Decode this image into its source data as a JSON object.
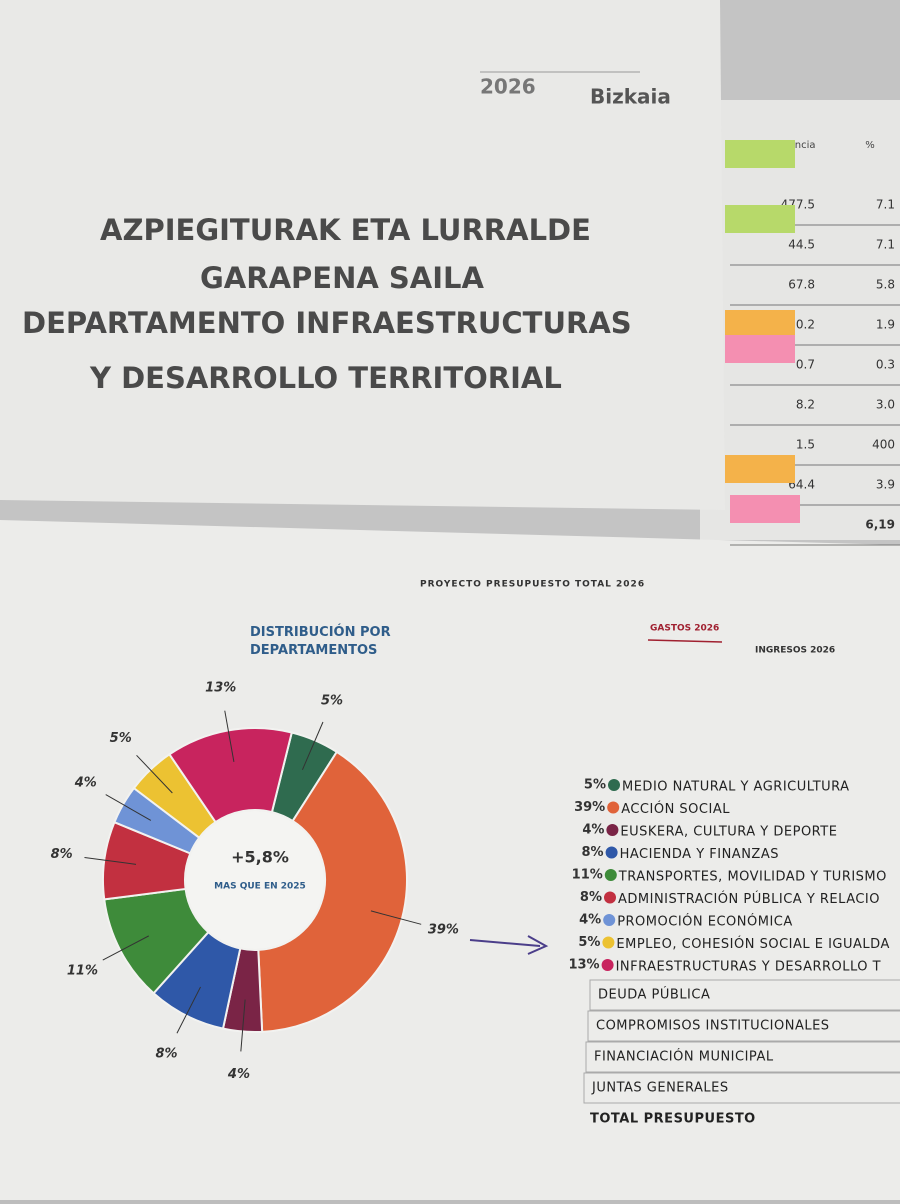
{
  "header": {
    "year": "2026",
    "brand": "Bizkaia",
    "title_lines": [
      "AZPIEGITURAK ETA LURRALDE",
      "GARAPENA SAILA",
      "DEPARTAMENTO  INFRAESTRUCTURAS",
      "Y DESARROLLO TERRITORIAL"
    ]
  },
  "table": {
    "columns": [
      "Diferencia",
      "%"
    ],
    "rows": [
      [
        "477.5",
        "7.1"
      ],
      [
        "44.5",
        "7.1"
      ],
      [
        "67.8",
        "5.8"
      ],
      [
        "0.2",
        "1.9"
      ],
      [
        "0.7",
        "0.3"
      ],
      [
        "8.2",
        "3.0"
      ],
      [
        "1.5",
        "400"
      ],
      [
        "64.4",
        "3.9"
      ],
      [
        "",
        "6,19"
      ]
    ]
  },
  "tabs": [
    "PROYECTO PRESUPUESTO TOTAL 2026",
    "GASTOS 2026",
    "INGRESOS 2026"
  ],
  "chart_data": {
    "type": "donut",
    "title": "DISTRIBUCIÓN POR DEPARTAMENTOS",
    "center_value": "+5,8%",
    "center_label": "MAS QUE EN 2025",
    "categories": [
      "MEDIO NATURAL Y AGRICULTURA",
      "ACCIÓN SOCIAL",
      "EUSKERA, CULTURA Y DEPORTE",
      "HACIENDA Y FINANZAS",
      "TRANSPORTES, MOVILIDAD Y TURISMO",
      "ADMINISTRACIÓN PÚBLICA Y RELACIO",
      "PROMOCIÓN ECONÓMICA",
      "EMPLEO, COHESIÓN SOCIAL E IGUALDA",
      "INFRAESTRUCTURAS Y DESARROLLO T"
    ],
    "values": [
      5,
      39,
      4,
      8,
      11,
      8,
      4,
      5,
      13
    ],
    "value_labels": [
      "5%",
      "39%",
      "4%",
      "8%",
      "11%",
      "8%",
      "4%",
      "5%",
      "13%"
    ],
    "colors": [
      "#2f6b4f",
      "#e0633a",
      "#7a2446",
      "#2f58a8",
      "#3e8b3a",
      "#c23040",
      "#6f93d6",
      "#ecc232",
      "#c8245e"
    ]
  },
  "other_items": [
    "DEUDA PÚBLICA",
    "COMPROMISOS INSTITUCIONALES",
    "FINANCIACIÓN MUNICIPAL",
    "JUNTAS GENERALES",
    "TOTAL PRESUPUESTO"
  ]
}
